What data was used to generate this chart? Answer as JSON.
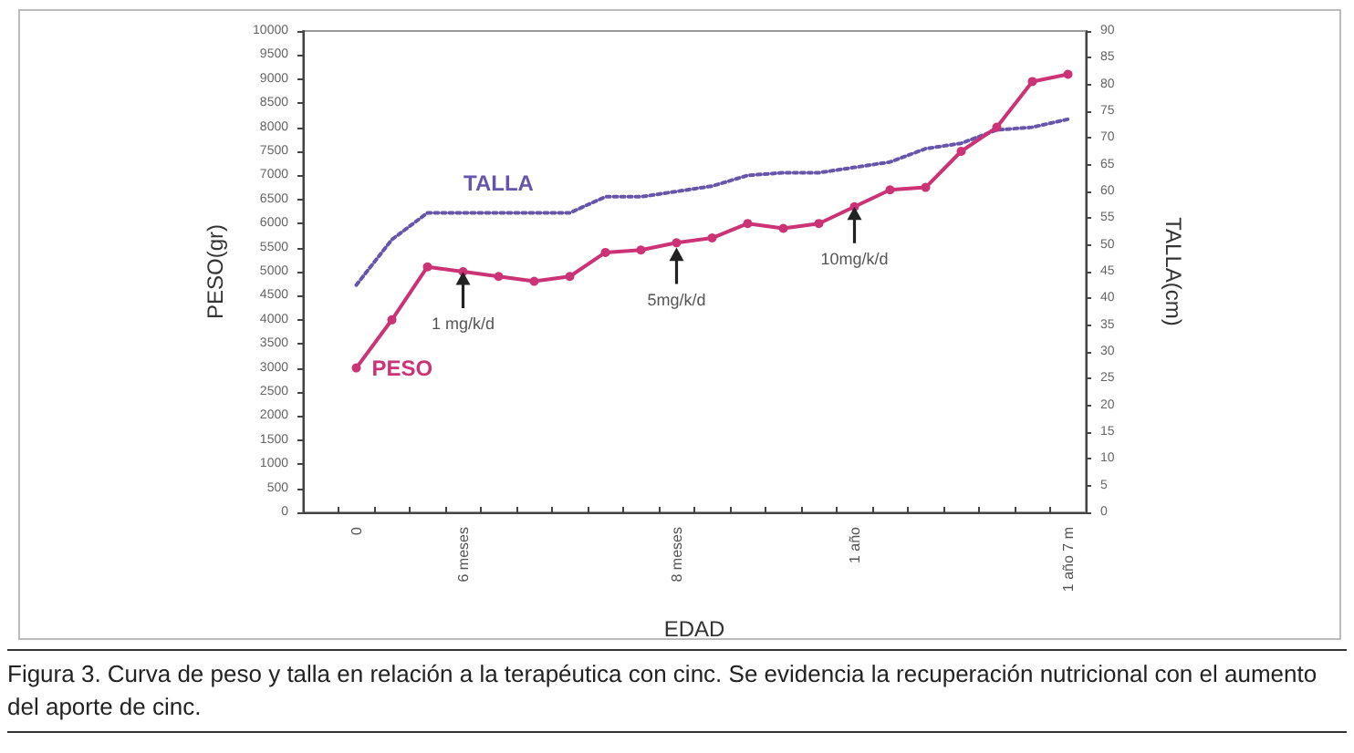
{
  "chart_data": {
    "type": "line",
    "xlabel": "EDAD",
    "ylabel": "PESO(gr)",
    "y2label": "TALLA(cm)",
    "categories": [
      null,
      "0",
      null,
      null,
      "6 meses",
      null,
      null,
      null,
      null,
      null,
      "8 meses",
      null,
      null,
      null,
      null,
      "1 año",
      null,
      null,
      null,
      null,
      null,
      "1 año 7 m"
    ],
    "series": [
      {
        "name": "PESO",
        "color": "#cc3377",
        "marker": "circle",
        "line_style": "solid",
        "values": [
          null,
          3000,
          4000,
          5100,
          5000,
          4900,
          4800,
          4900,
          5400,
          5450,
          5600,
          5700,
          6000,
          5900,
          6000,
          6350,
          6700,
          6750,
          7500,
          8000,
          8950,
          9100
        ]
      },
      {
        "name": "TALLA",
        "color": "#6655aa",
        "axis": "y2",
        "marker": "none",
        "line_style": "dotted",
        "values": [
          null,
          42.5,
          51,
          56,
          56,
          56,
          56,
          56,
          59,
          59,
          60,
          61,
          63,
          63.5,
          63.5,
          64.5,
          65.5,
          68,
          69,
          71.5,
          72,
          73.5
        ]
      }
    ],
    "ylim": [
      0,
      10000
    ],
    "yticks": [
      0,
      500,
      1000,
      1500,
      2000,
      2500,
      3000,
      3500,
      4000,
      4500,
      5000,
      5500,
      6000,
      6500,
      7000,
      7500,
      8000,
      8500,
      9000,
      9500,
      10000
    ],
    "y2lim": [
      0,
      90
    ],
    "y2ticks": [
      0,
      5,
      10,
      15,
      20,
      25,
      30,
      35,
      40,
      45,
      50,
      55,
      60,
      65,
      70,
      75,
      80,
      85,
      90
    ],
    "grid": false,
    "legend": false,
    "annotations": [
      {
        "text": "1 mg/k/d",
        "x": "6 meses",
        "y": 5000
      },
      {
        "text": "5mg/k/d",
        "x": "8 meses",
        "y": 5500
      },
      {
        "text": "10mg/k/d",
        "x": "1 año",
        "y": 6350
      },
      "Figura 3. Curva de peso y talla en relación a la terapéutica con cinc. Se evidencia la recuperación nutricional con el aumento del aporte de cinc."
    ]
  }
}
